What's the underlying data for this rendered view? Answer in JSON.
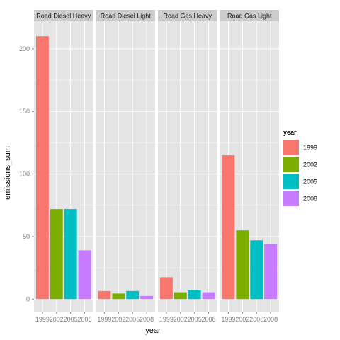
{
  "chart_data": {
    "type": "bar",
    "facet_by": "type",
    "facets": [
      {
        "label": "Road Diesel Heavy",
        "categories": [
          "1999",
          "2002",
          "2005",
          "2008"
        ],
        "values": [
          210,
          72,
          72,
          39
        ]
      },
      {
        "label": "Road Diesel Light",
        "categories": [
          "1999",
          "2002",
          "2005",
          "2008"
        ],
        "values": [
          6.5,
          4.5,
          6.5,
          2.5
        ]
      },
      {
        "label": "Road Gas Heavy",
        "categories": [
          "1999",
          "2002",
          "2005",
          "2008"
        ],
        "values": [
          17.5,
          5.5,
          7,
          5.5
        ]
      },
      {
        "label": "Road Gas Light",
        "categories": [
          "1999",
          "2002",
          "2005",
          "2008"
        ],
        "values": [
          115,
          55,
          47,
          44
        ]
      }
    ],
    "xlabel": "year",
    "ylabel": "emissions_sum",
    "ylim": [
      -10,
      222
    ],
    "yticks": [
      0,
      50,
      100,
      150,
      200
    ],
    "grid": true,
    "legend": {
      "title": "year",
      "position": "right",
      "entries": [
        {
          "label": "1999",
          "color": "#F8766D"
        },
        {
          "label": "2002",
          "color": "#7CAE00"
        },
        {
          "label": "2005",
          "color": "#00BFC4"
        },
        {
          "label": "2008",
          "color": "#C77CFF"
        }
      ]
    },
    "colors": {
      "panel_bg": "#e5e5e5",
      "grid": "#ffffff",
      "strip_bg": "#cccccc"
    }
  }
}
